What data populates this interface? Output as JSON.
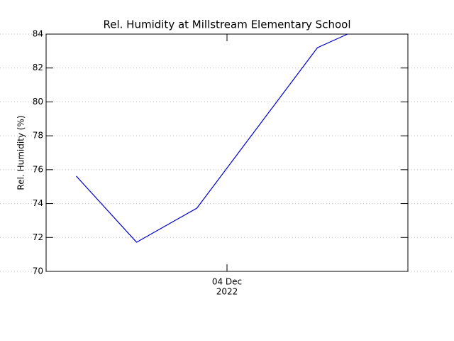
{
  "chart_data": {
    "type": "line",
    "title": "Rel. Humidity at Millstream Elementary School",
    "y_label": "Rel. Humidity (%)",
    "x": [
      1,
      3,
      5,
      9,
      10
    ],
    "series": [
      {
        "name": "Rel. Humidity",
        "color": "#0000cc",
        "values": [
          75.62,
          71.72,
          73.73,
          83.2,
          84.0
        ]
      }
    ],
    "xlim": [
      0,
      12
    ],
    "xticks": [
      {
        "value": 6,
        "label": [
          "04 Dec",
          "2022"
        ]
      }
    ],
    "ylim": [
      70,
      84
    ],
    "yticks": [
      70,
      72,
      74,
      76,
      78,
      80,
      82,
      84
    ],
    "grid": true
  }
}
